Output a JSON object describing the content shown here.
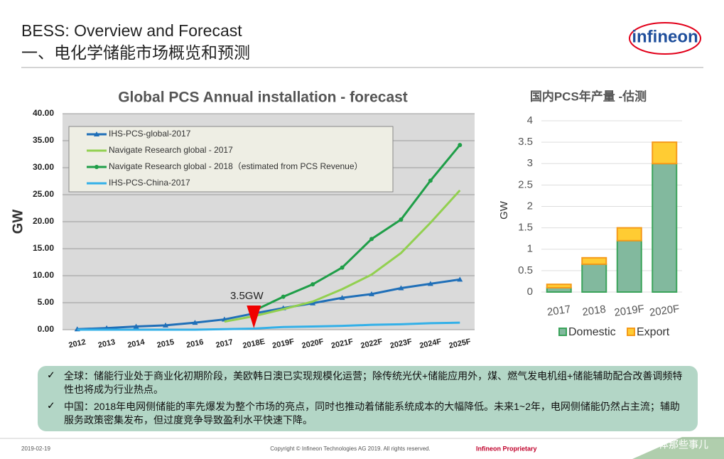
{
  "header": {
    "title": "BESS: Overview and Forecast",
    "subtitle": "一、电化学储能市场概览和预测",
    "logo": "infineon"
  },
  "chart_data": [
    {
      "type": "line",
      "title": "Global PCS Annual installation - forecast",
      "ylabel": "GW",
      "categories": [
        "2012",
        "2013",
        "2014",
        "2015",
        "2016",
        "2017",
        "2018E",
        "2019F",
        "2020F",
        "2021F",
        "2022F",
        "2023F",
        "2024F",
        "2025F"
      ],
      "ylim": [
        0,
        40
      ],
      "yticks": [
        {
          "value": 0,
          "label": "0.00"
        },
        {
          "value": 5,
          "label": "5.00"
        },
        {
          "value": 10,
          "label": "10.00"
        },
        {
          "value": 15,
          "label": "15.00"
        },
        {
          "value": 20,
          "label": "20.00"
        },
        {
          "value": 25,
          "label": "25.00"
        },
        {
          "value": 30,
          "label": "30.00"
        },
        {
          "value": 35,
          "label": "35.00"
        },
        {
          "value": 40,
          "label": "40.00"
        }
      ],
      "grid": true,
      "legend": "top-left",
      "series": [
        {
          "name": "IHS-PCS-global-2017",
          "color": "#1f6fb8",
          "marker": "triangle",
          "values": [
            0.1,
            0.3,
            0.6,
            0.8,
            1.3,
            1.9,
            3.0,
            4.0,
            4.9,
            5.9,
            6.6,
            7.7,
            8.5,
            9.3
          ]
        },
        {
          "name": "Navigate Research global - 2017",
          "color": "#92d050",
          "marker": "none",
          "values": [
            null,
            null,
            null,
            null,
            null,
            1.5,
            2.5,
            3.8,
            5.2,
            7.5,
            10.2,
            14.2,
            19.8,
            25.8
          ]
        },
        {
          "name": "Navigate Research global - 2018（estimated from PCS Revenue）",
          "color": "#1f9e48",
          "marker": "circle",
          "values": [
            null,
            null,
            null,
            null,
            null,
            null,
            3.5,
            6.1,
            8.4,
            11.5,
            16.8,
            20.4,
            27.6,
            34.2
          ]
        },
        {
          "name": "IHS-PCS-China-2017",
          "color": "#33b0e8",
          "marker": "none",
          "values": [
            0.0,
            0.0,
            0.0,
            0.0,
            0.0,
            0.1,
            0.2,
            0.5,
            0.6,
            0.7,
            0.9,
            1.0,
            1.2,
            1.3
          ]
        }
      ],
      "annotations": [
        {
          "text": "3.5GW",
          "x": "2018E"
        }
      ]
    },
    {
      "type": "bar",
      "stacked": true,
      "title": "国内PCS年产量 -估测",
      "ylabel": "GW",
      "legend": "bottom",
      "categories": [
        "2017",
        "2018",
        "2019F",
        "2020F"
      ],
      "ylim": [
        0,
        4
      ],
      "yticks": [
        0,
        0.5,
        1,
        1.5,
        2,
        2.5,
        3,
        3.5,
        4
      ],
      "grid": true,
      "series": [
        {
          "name": "Domestic",
          "color": "#82b99e",
          "values": [
            0.1,
            0.65,
            1.2,
            3.0
          ]
        },
        {
          "name": "Export",
          "color": "#ffcc33",
          "values": [
            0.08,
            0.15,
            0.3,
            0.5
          ]
        }
      ]
    }
  ],
  "notes": [
    "全球：储能行业处于商业化初期阶段，美欧韩日澳已实现规模化运营；除传统光伏+储能应用外，煤、燃气发电机组+储能辅助配合改善调频特性也将成为行业热点。",
    "中国：2018年电网侧储能的率先爆发为整个市场的亮点，同时也推动着储能系统成本的大幅降低。未来1~2年，电网侧储能仍然占主流；辅助服务政策密集发布，但过度竞争导致盈利水平快速下降。"
  ],
  "footer": {
    "date": "2019-02-19",
    "copyright": "Copyright © Infineon Technologies AG 2019. All rights  reserved.",
    "classification": "Infineon Proprietary",
    "watermark": "半导体那些事儿"
  }
}
